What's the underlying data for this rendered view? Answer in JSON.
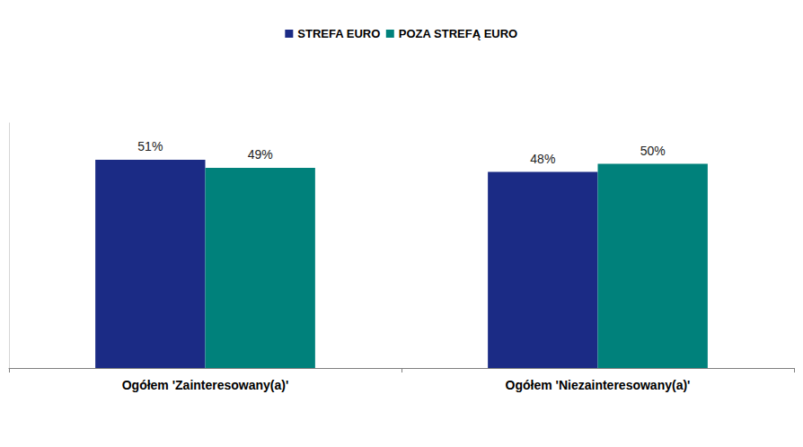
{
  "chart_data": {
    "type": "bar",
    "categories": [
      "Ogółem 'Zainteresowany(a)'",
      "Ogółem 'Niezainteresowany(a)'"
    ],
    "series": [
      {
        "name": "STREFA EURO",
        "color": "#1b2b85",
        "values": [
          51,
          48
        ],
        "value_labels": [
          "51%",
          "48%"
        ]
      },
      {
        "name": "POZA STREFĄ EURO",
        "color": "#00817b",
        "values": [
          49,
          50
        ],
        "value_labels": [
          "49%",
          "50%"
        ]
      }
    ],
    "ylim": [
      0,
      60
    ],
    "yticks": [
      0,
      60
    ],
    "grid": false,
    "legend": "top",
    "data_labels": true,
    "tick_labels": "x"
  }
}
